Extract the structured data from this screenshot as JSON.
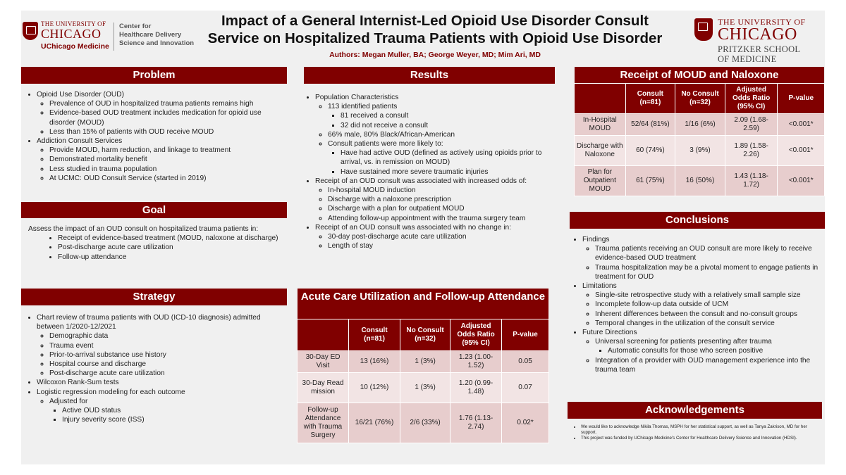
{
  "header": {
    "left_logo": {
      "line1": "THE UNIVERSITY OF",
      "line2": "CHICAGO",
      "line3": "UChicago Medicine",
      "center": [
        "Center for",
        "Healthcare Delivery",
        "Science and Innovation"
      ]
    },
    "title": "Impact of a General Internist-Led Opioid Use Disorder Consult Service on Hospitalized Trauma Patients with Opioid Use Disorder",
    "authors": "Authors: Megan Muller, BA; George Weyer, MD; Mim Ari, MD",
    "right_logo": {
      "line1": "THE UNIVERSITY OF",
      "line2": "CHICAGO",
      "line3": "PRITZKER SCHOOL",
      "line4": "OF MEDICINE"
    }
  },
  "problem": {
    "heading": "Problem",
    "items": [
      "Opioid Use Disorder (OUD)",
      "Prevalence of OUD in hospitalized trauma patients remains high",
      "Evidence-based OUD treatment includes medication for opioid use disorder (MOUD)",
      "Less than 15% of patients with OUD receive MOUD",
      "Addiction Consult Services",
      "Provide MOUD, harm reduction, and linkage to treatment",
      "Demonstrated mortality benefit",
      "Less studied in trauma population",
      "At UCMC: OUD Consult Service (started in 2019)"
    ]
  },
  "goal": {
    "heading": "Goal",
    "intro": "Assess the impact of an OUD consult on hospitalized trauma patients in:",
    "items": [
      "Receipt of evidence-based treatment (MOUD, naloxone at discharge)",
      "Post-discharge acute care utilization",
      "Follow-up attendance"
    ]
  },
  "strategy": {
    "heading": "Strategy",
    "items": [
      "Chart review of trauma patients with OUD (ICD-10 diagnosis) admitted between 1/2020-12/2021",
      "Demographic data",
      "Trauma event",
      "Prior-to-arrival substance use history",
      "Hospital course and discharge",
      "Post-discharge acute care utilization",
      "Wilcoxon Rank-Sum tests",
      "Logistic regression modeling for each outcome",
      "Adjusted for",
      "Active OUD status",
      "Injury severity score (ISS)"
    ]
  },
  "results": {
    "heading": "Results",
    "items": [
      "Population Characteristics",
      "113 identified patients",
      "81 received a consult",
      "32 did not receive a consult",
      "66% male, 80% Black/African-American",
      "Consult patients were more likely to:",
      "Have had active OUD (defined as actively using opioids prior to arrival, vs. in remission on MOUD)",
      "Have sustained more severe traumatic injuries",
      "Receipt of an OUD consult was associated with increased odds of:",
      "In-hospital MOUD induction",
      "Discharge with a naloxone prescription",
      "Discharge with a plan for outpatient MOUD",
      "Attending follow-up appointment with the trauma surgery team",
      "Receipt of an OUD consult was associated with no change in:",
      "30-day post-discharge acute care utilization",
      "Length of stay"
    ]
  },
  "acute_table": {
    "heading": "Acute Care Utilization and Follow-up Attendance",
    "columns": [
      "",
      "Consult (n=81)",
      "No Consult (n=32)",
      "Adjusted Odds Ratio (95% CI)",
      "P-value"
    ],
    "rows": [
      [
        "30-Day ED Visit",
        "13 (16%)",
        "1 (3%)",
        "1.23 (1.00-1.52)",
        "0.05"
      ],
      [
        "30-Day Readmission",
        "10 (12%)",
        "1 (3%)",
        "1.20 (0.99-1.48)",
        "0.07"
      ],
      [
        "Follow-up Attendance with Trauma Surgery",
        "16/21 (76%)",
        "2/6 (33%)",
        "1.76 (1.13-2.74)",
        "0.02*"
      ]
    ]
  },
  "moud_table": {
    "heading": "Receipt of MOUD and Naloxone",
    "columns": [
      "",
      "Consult (n=81)",
      "No Consult (n=32)",
      "Adjusted Odds Ratio (95% CI)",
      "P-value"
    ],
    "rows": [
      [
        "In-Hospital MOUD",
        "52/64 (81%)",
        "1/16 (6%)",
        "2.09 (1.68-2.59)",
        "<0.001*"
      ],
      [
        "Discharge with Naloxone",
        "60 (74%)",
        "3 (9%)",
        "1.89 (1.58-2.26)",
        "<0.001*"
      ],
      [
        "Plan for Outpatient MOUD",
        "61 (75%)",
        "16 (50%)",
        "1.43 (1.18-1.72)",
        "<0.001*"
      ]
    ]
  },
  "conclusions": {
    "heading": "Conclusions",
    "items": [
      "Findings",
      "Trauma patients receiving an OUD consult are more likely to receive evidence-based OUD treatment",
      "Trauma hospitalization may be a pivotal moment to engage patients in treatment for OUD",
      "Limitations",
      "Single-site retrospective study with a relatively small sample size",
      "Incomplete follow-up data outside of UCM",
      "Inherent differences between the consult and no-consult groups",
      "Temporal changes in the utilization of the consult service",
      "Future Directions",
      "Universal screening for patients presenting after trauma",
      "Automatic consults for those who screen positive",
      "Integration of a provider with OUD management experience into the trauma team"
    ]
  },
  "acknowledgements": {
    "heading": "Acknowledgements",
    "items": [
      "We would like to acknowledge Nikila Thomas, MSPH for her statistical support, as well as Tanya Zakrison, MD for her support.",
      "This project was funded by UChicago Medicine's Center for Healthcare Delivery Science and Innovation (HDSI)."
    ]
  },
  "colors": {
    "maroon": "#800000",
    "panel": "#f0f0f0",
    "row_dark": "#e7cdcd",
    "row_light": "#f2e4e4"
  }
}
